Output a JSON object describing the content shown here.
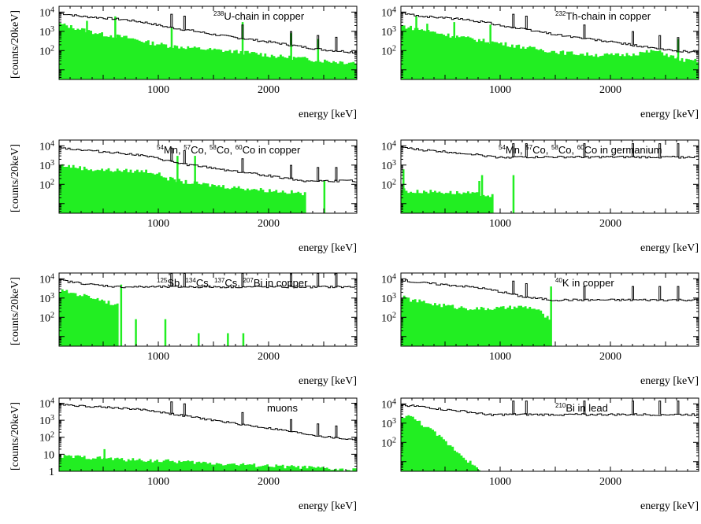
{
  "colors": {
    "fill": "#22ee22",
    "line": "#000000",
    "background": "#ffffff"
  },
  "chart_data": [
    {
      "type": "area",
      "title": "238U-chain in copper",
      "title_sup": "238",
      "title_main": "U-chain in copper",
      "xlabel": "energy [keV]",
      "ylabel": "[counts/20keV]",
      "xlim": [
        100,
        2800
      ],
      "ylog": true,
      "xticks": [
        1000,
        2000
      ],
      "ytick_labels": [
        {
          "y": 10000,
          "base": "10",
          "exp": "4"
        },
        {
          "y": 1000,
          "base": "10",
          "exp": "3"
        },
        {
          "y": 100,
          "base": "10",
          "exp": "2"
        }
      ],
      "x": [
        100,
        300,
        500,
        700,
        900,
        1100,
        1300,
        1500,
        1700,
        1900,
        2100,
        2300,
        2500,
        2700,
        2800
      ],
      "series": [
        {
          "role": "reference",
          "values": [
            9000,
            6000,
            5000,
            4000,
            2800,
            1600,
            1100,
            700,
            480,
            340,
            240,
            160,
            110,
            90,
            80
          ]
        },
        {
          "role": "component",
          "values": [
            2500,
            1300,
            700,
            500,
            280,
            180,
            140,
            110,
            90,
            70,
            50,
            40,
            30,
            25,
            25
          ]
        }
      ],
      "peaks": [
        {
          "x": 352,
          "value": 3500
        },
        {
          "x": 609,
          "value": 6000
        },
        {
          "x": 1120,
          "value": 1500
        },
        {
          "x": 1764,
          "value": 3000
        },
        {
          "x": 2204,
          "value": 800
        },
        {
          "x": 2448,
          "value": 400
        }
      ]
    },
    {
      "type": "area",
      "title": "232Th-chain in copper",
      "title_sup": "232",
      "title_main": "Th-chain in copper",
      "xlabel": "energy [keV]",
      "ylabel": "",
      "xlim": [
        100,
        2800
      ],
      "ylog": true,
      "xticks": [
        1000,
        2000
      ],
      "ytick_labels": [
        {
          "y": 10000,
          "base": "10",
          "exp": "4"
        },
        {
          "y": 1000,
          "base": "10",
          "exp": "3"
        },
        {
          "y": 100,
          "base": "10",
          "exp": "2"
        }
      ],
      "x": [
        100,
        300,
        500,
        700,
        900,
        1100,
        1300,
        1500,
        1700,
        1900,
        2100,
        2300,
        2400,
        2500,
        2600,
        2700,
        2800
      ],
      "series": [
        {
          "role": "reference",
          "values": [
            9000,
            6000,
            5000,
            4000,
            2800,
            1600,
            1100,
            700,
            480,
            340,
            240,
            160,
            130,
            110,
            95,
            90,
            80
          ]
        },
        {
          "role": "component",
          "values": [
            2000,
            1200,
            700,
            450,
            300,
            200,
            130,
            90,
            70,
            60,
            60,
            80,
            100,
            70,
            40,
            30,
            30
          ]
        }
      ],
      "peaks": [
        {
          "x": 239,
          "value": 6000
        },
        {
          "x": 338,
          "value": 2500
        },
        {
          "x": 583,
          "value": 3000
        },
        {
          "x": 911,
          "value": 2200
        },
        {
          "x": 2614,
          "value": 400
        }
      ]
    },
    {
      "type": "area",
      "title": "54Mn, 57Co, 58Co, 60Co in copper",
      "title_parts": [
        {
          "sup": "54",
          "text": "Mn, "
        },
        {
          "sup": "57",
          "text": "Co, "
        },
        {
          "sup": "58",
          "text": "Co, "
        },
        {
          "sup": "60",
          "text": "Co in copper"
        }
      ],
      "xlabel": "energy [keV]",
      "ylabel": "[counts/20keV]",
      "xlim": [
        100,
        2800
      ],
      "ylog": true,
      "xticks": [
        1000,
        2000
      ],
      "ytick_labels": [
        {
          "y": 10000,
          "base": "10",
          "exp": "4"
        },
        {
          "y": 1000,
          "base": "10",
          "exp": "3"
        },
        {
          "y": 100,
          "base": "10",
          "exp": "2"
        }
      ],
      "x": [
        100,
        200,
        400,
        600,
        800,
        900,
        1000,
        1100,
        1200,
        1300,
        1500,
        1700,
        1900,
        2100,
        2300,
        2350
      ],
      "series": [
        {
          "role": "reference",
          "values": [
            9000,
            7000,
            5500,
            4500,
            3500,
            2800,
            2200,
            1600,
            1200,
            1000,
            700,
            480,
            340,
            240,
            160,
            150
          ]
        },
        {
          "role": "component",
          "values": [
            1000,
            900,
            600,
            550,
            500,
            500,
            350,
            200,
            150,
            120,
            90,
            70,
            55,
            45,
            35,
            30
          ]
        }
      ],
      "peaks": [
        {
          "x": 1173,
          "value": 3000
        },
        {
          "x": 1332,
          "value": 3000
        },
        {
          "x": 2505,
          "value": 150
        }
      ]
    },
    {
      "type": "area",
      "title": "54Mn, 57Co, 58Co, 60Co in germanium",
      "title_parts": [
        {
          "sup": "54",
          "text": "Mn, "
        },
        {
          "sup": "57",
          "text": "Co, "
        },
        {
          "sup": "58",
          "text": "Co, "
        },
        {
          "sup": "60",
          "text": "Co in germanium"
        }
      ],
      "xlabel": "energy [keV]",
      "ylabel": "",
      "xlim": [
        100,
        2800
      ],
      "ylog": true,
      "xticks": [
        1000,
        2000
      ],
      "ytick_labels": [
        {
          "y": 10000,
          "base": "10",
          "exp": "4"
        },
        {
          "y": 1000,
          "base": "10",
          "exp": "3"
        },
        {
          "y": 100,
          "base": "10",
          "exp": "2"
        }
      ],
      "x": [
        100,
        200,
        300,
        500,
        700,
        850,
        950
      ],
      "series": [
        {
          "role": "reference",
          "values": [
            9000,
            7000,
            6000,
            5000,
            4000,
            3200,
            2600
          ]
        },
        {
          "role": "component",
          "values": [
            60,
            40,
            45,
            40,
            35,
            30,
            25
          ]
        }
      ],
      "peaks": [
        {
          "x": 122,
          "value": 600
        },
        {
          "x": 810,
          "value": 150
        },
        {
          "x": 835,
          "value": 300
        },
        {
          "x": 1120,
          "value": 300
        }
      ]
    },
    {
      "type": "area",
      "title": "125Sb, 134Cs, 137Cs, 207Bi in copper",
      "title_parts": [
        {
          "sup": "125",
          "text": "Sb, "
        },
        {
          "sup": "134",
          "text": "Cs, "
        },
        {
          "sup": "137",
          "text": "Cs, "
        },
        {
          "sup": "207",
          "text": "Bi in copper"
        }
      ],
      "xlabel": "energy [keV]",
      "ylabel": "[counts/20keV]",
      "xlim": [
        100,
        2800
      ],
      "ylog": true,
      "xticks": [
        1000,
        2000
      ],
      "ytick_labels": [
        {
          "y": 10000,
          "base": "10",
          "exp": "4"
        },
        {
          "y": 1000,
          "base": "10",
          "exp": "3"
        },
        {
          "y": 100,
          "base": "10",
          "exp": "2"
        }
      ],
      "x": [
        100,
        200,
        300,
        400,
        500,
        600,
        650
      ],
      "series": [
        {
          "role": "reference",
          "values": [
            9000,
            7000,
            6000,
            5000,
            4500,
            4000,
            3800
          ]
        },
        {
          "role": "component",
          "values": [
            2500,
            2000,
            1500,
            1100,
            800,
            500,
            400
          ]
        }
      ],
      "peaks": [
        {
          "x": 662,
          "value": 5000
        },
        {
          "x": 796,
          "value": 80
        },
        {
          "x": 1063,
          "value": 80
        },
        {
          "x": 1365,
          "value": 15
        },
        {
          "x": 1630,
          "value": 15
        },
        {
          "x": 1770,
          "value": 15
        }
      ]
    },
    {
      "type": "area",
      "title": "40K in copper",
      "title_sup": "40",
      "title_main": "K in copper",
      "xlabel": "energy [keV]",
      "ylabel": "",
      "xlim": [
        100,
        2800
      ],
      "ylog": true,
      "xticks": [
        1000,
        2000
      ],
      "ytick_labels": [
        {
          "y": 10000,
          "base": "10",
          "exp": "4"
        },
        {
          "y": 1000,
          "base": "10",
          "exp": "3"
        },
        {
          "y": 100,
          "base": "10",
          "exp": "2"
        }
      ],
      "x": [
        100,
        200,
        400,
        600,
        800,
        1000,
        1200,
        1300,
        1400,
        1460
      ],
      "series": [
        {
          "role": "reference",
          "values": [
            9000,
            7000,
            5500,
            4500,
            3500,
            2200,
            1200,
            1000,
            900,
            800
          ]
        },
        {
          "role": "component",
          "values": [
            1200,
            800,
            500,
            350,
            280,
            300,
            350,
            300,
            150,
            60
          ]
        }
      ],
      "peaks": [
        {
          "x": 1461,
          "value": 4000
        }
      ]
    },
    {
      "type": "area",
      "title": "muons",
      "title_sup": "",
      "title_main": "muons",
      "xlabel": "energy [keV]",
      "ylabel": "[counts/20keV]",
      "xlim": [
        100,
        2800
      ],
      "ylog": true,
      "xticks": [
        1000,
        2000
      ],
      "ytick_labels": [
        {
          "y": 10000,
          "base": "10",
          "exp": "4"
        },
        {
          "y": 1000,
          "base": "10",
          "exp": "3"
        },
        {
          "y": 100,
          "base": "10",
          "exp": "2"
        },
        {
          "y": 10,
          "base": "10",
          "exp": ""
        },
        {
          "y": 1,
          "base": "1",
          "exp": ""
        }
      ],
      "x": [
        100,
        300,
        500,
        700,
        900,
        1100,
        1300,
        1500,
        1700,
        1900,
        2100,
        2300,
        2500,
        2700,
        2800
      ],
      "series": [
        {
          "role": "reference",
          "values": [
            9000,
            7000,
            6000,
            5000,
            4000,
            2500,
            1600,
            1000,
            650,
            420,
            280,
            170,
            110,
            80,
            70
          ]
        },
        {
          "role": "component",
          "values": [
            8,
            7,
            6,
            5,
            4.5,
            4,
            3.5,
            3,
            2.6,
            2.3,
            2,
            1.8,
            1.5,
            1.2,
            1.2
          ]
        }
      ],
      "peaks": [
        {
          "x": 511,
          "value": 20
        }
      ]
    },
    {
      "type": "area",
      "title": "210Bi in lead",
      "title_sup": "210",
      "title_main": "Bi in lead",
      "xlabel": "energy [keV]",
      "ylabel": "",
      "xlim": [
        100,
        2800
      ],
      "ylog": true,
      "xticks": [
        1000,
        2000
      ],
      "ytick_labels": [
        {
          "y": 10000,
          "base": "10",
          "exp": "4"
        },
        {
          "y": 1000,
          "base": "10",
          "exp": "3"
        },
        {
          "y": 100,
          "base": "10",
          "exp": "2"
        }
      ],
      "x": [
        100,
        150,
        200,
        300,
        400,
        500,
        600,
        700,
        800,
        900
      ],
      "series": [
        {
          "role": "reference",
          "values": [
            9000,
            8500,
            8000,
            7000,
            6000,
            5000,
            4500,
            4000,
            3200,
            2800
          ]
        },
        {
          "role": "component",
          "values": [
            1500,
            3000,
            2000,
            900,
            350,
            120,
            40,
            13,
            4,
            1
          ]
        }
      ],
      "peaks": []
    }
  ]
}
